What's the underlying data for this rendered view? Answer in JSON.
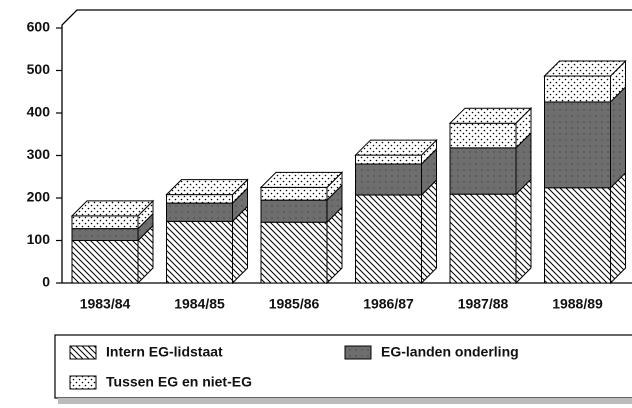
{
  "chart_data": {
    "type": "bar3d_stacked",
    "categories": [
      "1983/84",
      "1984/85",
      "1985/86",
      "1986/87",
      "1987/88",
      "1988/89"
    ],
    "series": [
      {
        "name": "Intern EG-lidstaat",
        "color": "#000000",
        "values": [
          100,
          145,
          143,
          207,
          209,
          224
        ]
      },
      {
        "name": "EG-landen onderling",
        "color": "#6e6e6e",
        "values": [
          28,
          43,
          52,
          73,
          109,
          202
        ]
      },
      {
        "name": "Tussen EG en niet-EG",
        "color": "#000000",
        "values": [
          30,
          20,
          30,
          21,
          58,
          61
        ]
      }
    ],
    "ylim": [
      0,
      600
    ],
    "yticks": [
      0,
      100,
      200,
      300,
      400,
      500,
      600
    ]
  }
}
